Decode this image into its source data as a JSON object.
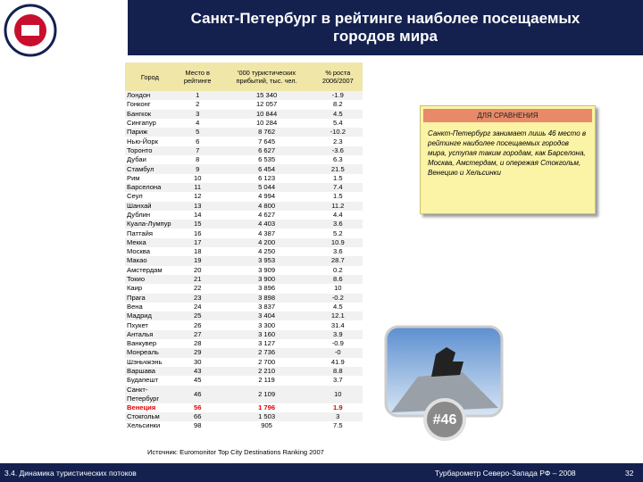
{
  "header": {
    "title": "Санкт-Петербург в рейтинге наиболее посещаемых городов мира"
  },
  "table": {
    "columns": [
      "Город",
      "Место в рейтинге",
      "'000 туристических прибытий, тыс. чел.",
      "% роста 2006/2007"
    ],
    "highlight_row": 33,
    "highlight_color": "#e00000",
    "rows": [
      [
        "Лондон",
        "1",
        "15 340",
        "-1.9"
      ],
      [
        "Гонконг",
        "2",
        "12 057",
        "8.2"
      ],
      [
        "Бангкок",
        "3",
        "10 844",
        "4.5"
      ],
      [
        "Сингапур",
        "4",
        "10 284",
        "5.4"
      ],
      [
        "Париж",
        "5",
        "8 762",
        "-10.2"
      ],
      [
        "Нью-Йорк",
        "6",
        "7 645",
        "2.3"
      ],
      [
        "Торонто",
        "7",
        "6 627",
        "-3.6"
      ],
      [
        "Дубаи",
        "8",
        "6 535",
        "6.3"
      ],
      [
        "Стамбул",
        "9",
        "6 454",
        "21.5"
      ],
      [
        "Рим",
        "10",
        "6 123",
        "1.5"
      ],
      [
        "Барселона",
        "11",
        "5 044",
        "7.4"
      ],
      [
        "Сеул",
        "12",
        "4 994",
        "1.5"
      ],
      [
        "Шанхай",
        "13",
        "4 800",
        "11.2"
      ],
      [
        "Дублин",
        "14",
        "4 627",
        "4.4"
      ],
      [
        "Куала-Лумпур",
        "15",
        "4 403",
        "3.6"
      ],
      [
        "Паттайя",
        "16",
        "4 387",
        "5.2"
      ],
      [
        "Мекка",
        "17",
        "4 200",
        "10.9"
      ],
      [
        "Москва",
        "18",
        "4 250",
        "3.6"
      ],
      [
        "Макао",
        "19",
        "3 953",
        "28.7"
      ],
      [
        "Амстердам",
        "20",
        "3 909",
        "0.2"
      ],
      [
        "Токио",
        "21",
        "3 900",
        "8.6"
      ],
      [
        "Каир",
        "22",
        "3 896",
        "10"
      ],
      [
        "Прага",
        "23",
        "3 898",
        "-0.2"
      ],
      [
        "Вена",
        "24",
        "3 837",
        "4.5"
      ],
      [
        "Мадрид",
        "25",
        "3 404",
        "12.1"
      ],
      [
        "Пхукет",
        "26",
        "3 300",
        "31.4"
      ],
      [
        "Анталья",
        "27",
        "3 160",
        "3.9"
      ],
      [
        "Ванкувер",
        "28",
        "3 127",
        "-0.9"
      ],
      [
        "Монреаль",
        "29",
        "2 736",
        "-0"
      ],
      [
        "Шэньчжэнь",
        "30",
        "2 700",
        "41.9"
      ],
      [
        "Варшава",
        "43",
        "2 210",
        "8.8"
      ],
      [
        "Будапешт",
        "45",
        "2 119",
        "3.7"
      ],
      [
        "Санкт-Петербург",
        "46",
        "2 109",
        "10"
      ],
      [
        "Венеция",
        "56",
        "1 796",
        "1.9"
      ],
      [
        "Стокгольм",
        "66",
        "1 503",
        "3"
      ],
      [
        "Хельсинки",
        "98",
        "905",
        "7.5"
      ]
    ],
    "source": "Источник: Euromonitor Top City Destinations Ranking 2007"
  },
  "comparison": {
    "title": "ДЛЯ СРАВНЕНИЯ",
    "text": "Санкт-Петербург занимает лишь 46 место в рейтинге наиболее посещаемых городов мира, уступая таким городам, как Барселона, Москва, Амстердам, и опережая Стокгольм, Венецию и Хельсинки"
  },
  "photo": {
    "badge": "#46"
  },
  "footer": {
    "section": "3.4. Динамика туристических потоков",
    "publication": "Турбарометр Северо-Запада РФ – 2008",
    "page": "32"
  }
}
